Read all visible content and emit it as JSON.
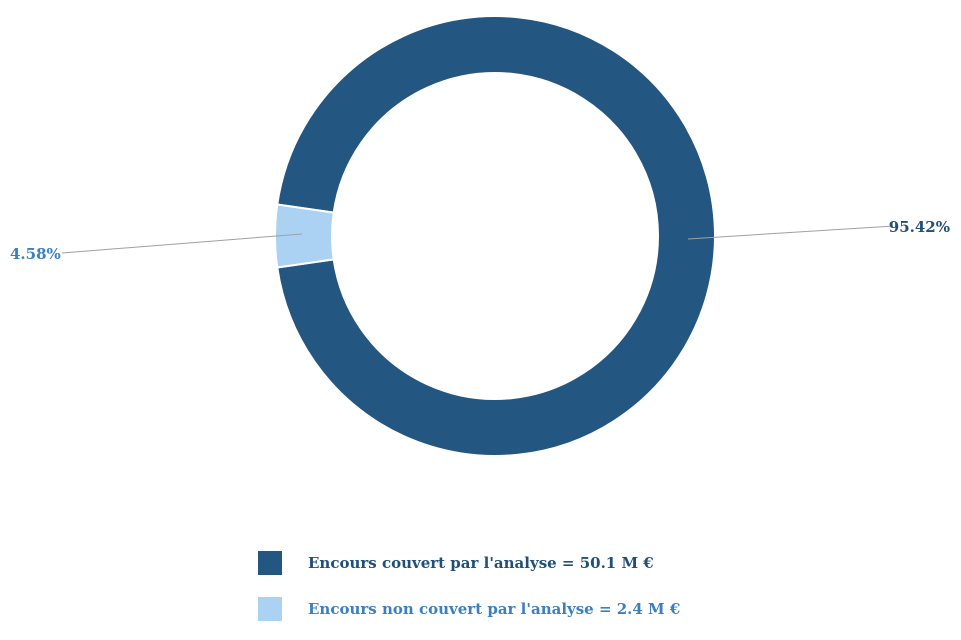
{
  "chart_data": {
    "type": "pie",
    "variant": "donut",
    "slices": [
      {
        "label": "Encours couvert par l'analyse = 50.1 M €",
        "value": 95.42,
        "value_label": "95.42%",
        "color": "#245682",
        "label_color": "#1f4f7a"
      },
      {
        "label": "Encours non couvert par l'analyse = 2.4 M €",
        "value": 4.58,
        "value_label": "4.58%",
        "color": "#abd2f3",
        "label_color": "#3a7fc0"
      }
    ],
    "legend_position": "bottom"
  }
}
